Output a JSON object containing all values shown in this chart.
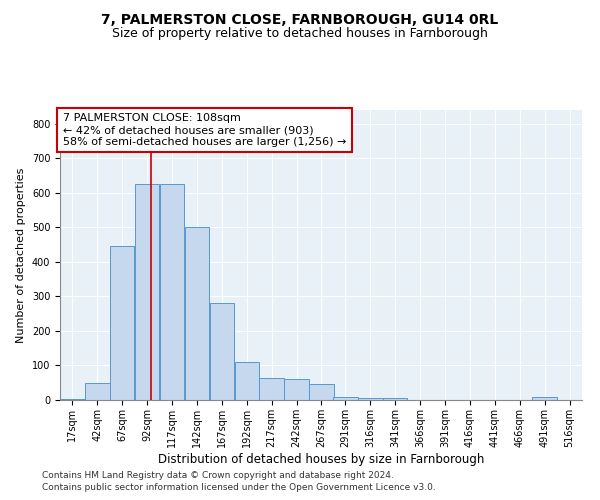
{
  "title": "7, PALMERSTON CLOSE, FARNBOROUGH, GU14 0RL",
  "subtitle": "Size of property relative to detached houses in Farnborough",
  "xlabel": "Distribution of detached houses by size in Farnborough",
  "ylabel": "Number of detached properties",
  "bar_color": "#c5d8ee",
  "bar_edge_color": "#5599cc",
  "background_color": "#e8f0f8",
  "grid_color": "#ffffff",
  "bin_starts": [
    17,
    42,
    67,
    92,
    117,
    142,
    167,
    192,
    217,
    242,
    267,
    291,
    316,
    341,
    366,
    391,
    416,
    441,
    466,
    491,
    516
  ],
  "bin_width": 25,
  "bar_heights": [
    3,
    50,
    445,
    625,
    625,
    500,
    280,
    110,
    65,
    60,
    45,
    10,
    5,
    5,
    0,
    0,
    0,
    0,
    0,
    10,
    0
  ],
  "red_line_x": 108,
  "annotation_text": "7 PALMERSTON CLOSE: 108sqm\n← 42% of detached houses are smaller (903)\n58% of semi-detached houses are larger (1,256) →",
  "annotation_box_color": "#ffffff",
  "annotation_box_edge": "#cc0000",
  "annotation_fontsize": 8,
  "ylim": [
    0,
    840
  ],
  "yticks": [
    0,
    100,
    200,
    300,
    400,
    500,
    600,
    700,
    800
  ],
  "footer_line1": "Contains HM Land Registry data © Crown copyright and database right 2024.",
  "footer_line2": "Contains public sector information licensed under the Open Government Licence v3.0.",
  "title_fontsize": 10,
  "subtitle_fontsize": 9,
  "xlabel_fontsize": 8.5,
  "ylabel_fontsize": 8,
  "tick_label_fontsize": 7
}
